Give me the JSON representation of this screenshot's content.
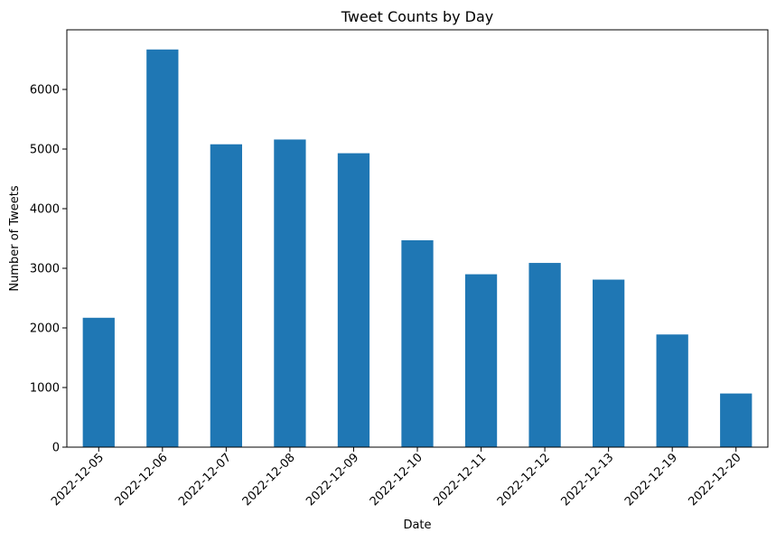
{
  "chart_data": {
    "type": "bar",
    "title": "Tweet Counts by Day",
    "xlabel": "Date",
    "ylabel": "Number of Tweets",
    "categories": [
      "2022-12-05",
      "2022-12-06",
      "2022-12-07",
      "2022-12-08",
      "2022-12-09",
      "2022-12-10",
      "2022-12-11",
      "2022-12-12",
      "2022-12-13",
      "2022-12-19",
      "2022-12-20"
    ],
    "values": [
      2170,
      6670,
      5080,
      5160,
      4930,
      3470,
      2900,
      3090,
      2810,
      1890,
      900
    ],
    "ylim": [
      0,
      7000
    ],
    "yticks": [
      0,
      1000,
      2000,
      3000,
      4000,
      5000,
      6000
    ],
    "grid": false,
    "bar_color": "#1f77b4"
  }
}
